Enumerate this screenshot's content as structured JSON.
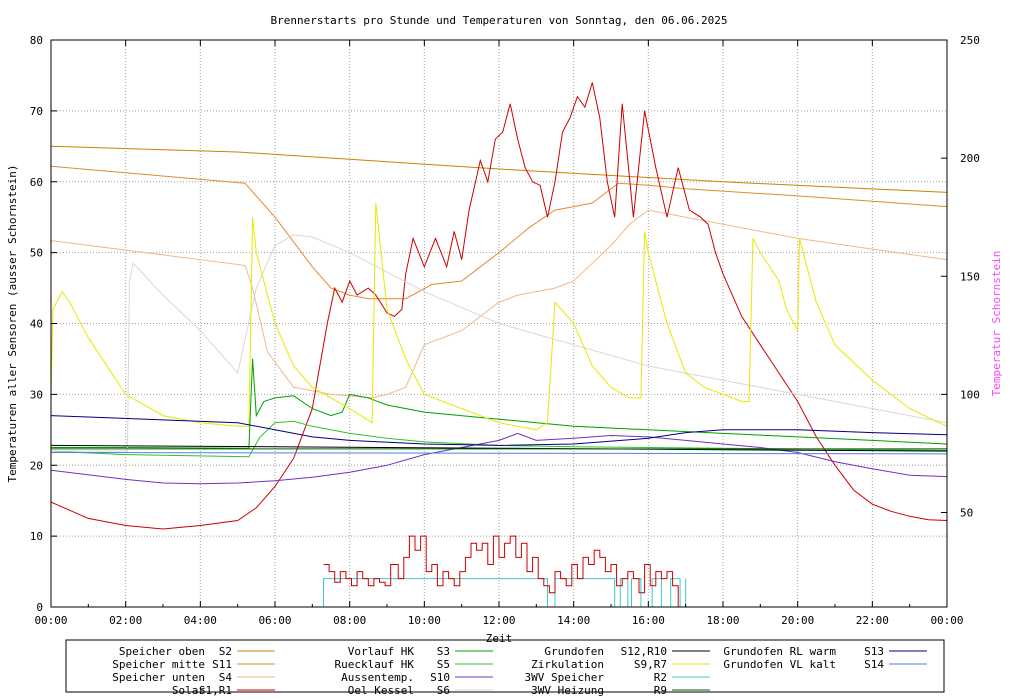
{
  "chart_data": {
    "type": "line",
    "title": "Brennerstarts pro Stunde und Temperaturen von Sonntag, den 06.06.2025",
    "xlabel": "Zeit",
    "ylabel": "Temperaturen aller Sensoren (ausser Schornstein)",
    "y2label": "Temperatur Schornstein",
    "xlim": [
      0,
      24
    ],
    "ylim": [
      0,
      80
    ],
    "y2lim": [
      10,
      250
    ],
    "x_ticks": [
      "00:00",
      "02:00",
      "04:00",
      "06:00",
      "08:00",
      "10:00",
      "12:00",
      "14:00",
      "16:00",
      "18:00",
      "20:00",
      "22:00",
      "00:00"
    ],
    "y_ticks": [
      "0",
      "10",
      "20",
      "30",
      "40",
      "50",
      "60",
      "70",
      "80"
    ],
    "y2_ticks": [
      "50",
      "100",
      "150",
      "200",
      "250"
    ],
    "grid": true,
    "legend_placement": "bottom",
    "colors": {
      "y2label": "#ff44ff",
      "frame": "#000000",
      "grid": "#a0a0a0"
    },
    "series": [
      {
        "name": "Speicher oben",
        "code": "S2",
        "color": "#d08000",
        "x": [
          0,
          5,
          12,
          18,
          24
        ],
        "y": [
          65.0,
          64.2,
          61.8,
          60.0,
          58.5
        ]
      },
      {
        "name": "Speicher mitte",
        "code": "S11",
        "color": "#e08c30",
        "x": [
          0,
          5.2,
          6,
          7,
          7.5,
          8,
          8.5,
          9.5,
          10.2,
          11,
          12,
          12.8,
          13.5,
          14,
          14.5,
          15.2,
          16,
          17,
          20,
          24
        ],
        "y": [
          62.2,
          59.8,
          55,
          48,
          45,
          44,
          43.5,
          43.5,
          45.5,
          46,
          50,
          53.5,
          56,
          56.5,
          57,
          59.8,
          59.5,
          59,
          58,
          56.5
        ]
      },
      {
        "name": "Speicher unten",
        "code": "S4",
        "color": "#f0b888",
        "x": [
          0,
          5.2,
          5.4,
          5.8,
          6.5,
          7,
          7.5,
          8,
          8.6,
          9,
          9.5,
          10,
          11,
          11.5,
          12,
          12.5,
          13,
          13.5,
          14,
          14.5,
          15,
          15.5,
          16,
          18,
          20,
          22,
          24
        ],
        "y": [
          51.7,
          48.2,
          45,
          36,
          31,
          30.5,
          30,
          29.8,
          29.5,
          30,
          31,
          37,
          39,
          41,
          43,
          44,
          44.5,
          45,
          46,
          48.5,
          51,
          54,
          56,
          54,
          52,
          50.5,
          49
        ]
      },
      {
        "name": "Solar",
        "code": "S1,R1",
        "color": "#cc0000",
        "x": [
          0,
          1,
          2,
          3,
          4,
          5,
          5.5,
          6,
          6.5,
          7,
          7.4,
          7.6,
          7.8,
          8,
          8.2,
          8.5,
          8.7,
          9,
          9.2,
          9.4,
          9.5,
          9.7,
          10,
          10.3,
          10.6,
          10.8,
          11,
          11.2,
          11.5,
          11.7,
          11.9,
          12.1,
          12.3,
          12.5,
          12.7,
          12.9,
          13.1,
          13.3,
          13.5,
          13.7,
          13.9,
          14.1,
          14.3,
          14.5,
          14.7,
          14.9,
          15.1,
          15.3,
          15.6,
          15.9,
          16.2,
          16.5,
          16.8,
          17.1,
          17.4,
          17.6,
          17.8,
          18,
          18.5,
          19,
          19.5,
          20,
          20.5,
          21,
          21.5,
          22,
          22.5,
          23,
          23.5,
          24
        ],
        "y": [
          14.8,
          12.5,
          11.5,
          11,
          11.5,
          12.2,
          14,
          17,
          21,
          28,
          40,
          45,
          43,
          46,
          44,
          45,
          44,
          41.5,
          41,
          42,
          47,
          52,
          48,
          52,
          48,
          53,
          49,
          56,
          63,
          60,
          66,
          67,
          71,
          66,
          62,
          60,
          59.5,
          55,
          60,
          67,
          69,
          72,
          70.5,
          74,
          69,
          60,
          55,
          71,
          55,
          70,
          62,
          55,
          62,
          56,
          55,
          54,
          50,
          47,
          41,
          37,
          33,
          29,
          24,
          20,
          16.5,
          14.5,
          13.5,
          12.8,
          12.3,
          12.2
        ]
      },
      {
        "name": "Vorlauf HK",
        "code": "S3",
        "color": "#00a000",
        "x": [
          0,
          2,
          5.3,
          5.4,
          5.5,
          5.7,
          6,
          6.5,
          7,
          7.5,
          7.8,
          8,
          8.5,
          9,
          10,
          12,
          14,
          16,
          18,
          20,
          22,
          24
        ],
        "y": [
          22.5,
          22.5,
          22.4,
          35,
          27,
          29,
          29.5,
          29.8,
          28,
          27,
          27.5,
          30,
          29.5,
          28.5,
          27.5,
          26.5,
          25.5,
          25,
          24.5,
          24,
          23.5,
          23
        ]
      },
      {
        "name": "Ruecklauf HK",
        "code": "S5",
        "color": "#30c030",
        "x": [
          0,
          2,
          5.3,
          5.6,
          6,
          6.5,
          7,
          7.5,
          8,
          9,
          10,
          12,
          14,
          16,
          18,
          20,
          22,
          24
        ],
        "y": [
          22,
          21.5,
          21.2,
          24,
          26,
          26.2,
          25.5,
          25,
          24.5,
          23.8,
          23.3,
          22.8,
          22.6,
          22.5,
          22.4,
          22.3,
          22.2,
          22.1
        ]
      },
      {
        "name": "Aussentemp.",
        "code": "S10",
        "color": "#7030c0",
        "x": [
          0,
          2,
          3,
          4,
          5,
          6,
          7,
          8,
          9,
          10,
          11,
          12,
          12.5,
          13,
          14,
          15,
          16,
          17,
          18,
          19,
          20,
          21,
          22,
          23,
          24
        ],
        "y": [
          19.3,
          18,
          17.5,
          17.4,
          17.5,
          17.8,
          18.3,
          19,
          20,
          21.5,
          22.5,
          23.5,
          24.5,
          23.5,
          23.8,
          24.2,
          24,
          23.5,
          23,
          22.5,
          21.8,
          20.5,
          19.5,
          18.6,
          18.4
        ]
      },
      {
        "name": "Oel Kessel",
        "code": "S6",
        "color": "#d8d8d8",
        "x": [
          0,
          2.05,
          2.1,
          2.2,
          3,
          4,
          5,
          5.5,
          6,
          6.5,
          7,
          8,
          10,
          12,
          14,
          16,
          18,
          20,
          22,
          24
        ],
        "y": [
          22,
          22,
          46,
          48.5,
          44,
          39,
          33,
          45,
          51,
          52.5,
          52.2,
          50,
          44.5,
          40,
          37,
          34,
          32,
          30,
          28,
          26
        ]
      },
      {
        "name": "Grundofen",
        "code": "S12,R10",
        "color": "#000000",
        "x": [
          0,
          6,
          12,
          18,
          24
        ],
        "y": [
          22.8,
          22.6,
          22.4,
          22.2,
          22
        ]
      },
      {
        "name": "Zirkulation",
        "code": "S9,R7",
        "color": "#e8e800",
        "x": [
          0,
          0.05,
          0.3,
          0.5,
          1,
          2,
          3,
          4,
          5,
          5.3,
          5.4,
          5.5,
          6,
          6.5,
          7,
          8,
          8.6,
          8.7,
          8.8,
          9,
          9.5,
          10,
          11,
          12,
          13,
          13.3,
          13.5,
          14,
          14.5,
          15,
          15.5,
          15.8,
          15.9,
          16,
          16.5,
          17,
          17.5,
          18,
          18.5,
          18.7,
          18.8,
          19,
          19.5,
          19.7,
          20,
          20.05,
          20.2,
          20.5,
          21,
          22,
          23,
          24
        ],
        "y": [
          30,
          42,
          44.5,
          43,
          38,
          30,
          27,
          26,
          25.5,
          25.5,
          55,
          50,
          40,
          34,
          31,
          28,
          26,
          57,
          52,
          42,
          35,
          30,
          28,
          26,
          25,
          26,
          43,
          40,
          34,
          31,
          29.5,
          29.5,
          53,
          50,
          40,
          33,
          31,
          30,
          29,
          29,
          52,
          50,
          46,
          42,
          39,
          52,
          49,
          43,
          37,
          32,
          28,
          25.5
        ]
      },
      {
        "name": "3WV Speicher",
        "code": "R2",
        "color": "#40c8c8",
        "x": [
          7.3,
          7.3,
          13.3,
          13.3,
          13.5,
          13.5,
          15.1,
          15.1,
          15.25,
          15.25,
          15.45,
          15.45,
          15.55,
          15.55,
          15.8,
          15.8,
          16.1,
          16.1,
          16.35,
          16.35,
          16.6,
          16.6,
          16.85,
          16.85,
          17.0,
          17.0
        ],
        "y": [
          0,
          4,
          4,
          0,
          0,
          4,
          4,
          0,
          0,
          4,
          4,
          0,
          0,
          4,
          4,
          0,
          0,
          4,
          4,
          0,
          0,
          4,
          4,
          0,
          0,
          4
        ]
      },
      {
        "name": "3WV Heizung",
        "code": "R9",
        "color": "#006000",
        "x": [
          0,
          24
        ],
        "y": [
          22.3,
          22.3
        ]
      },
      {
        "name": "Grundofen RL warm",
        "code": "S13",
        "color": "#000080",
        "x": [
          0,
          5,
          6,
          7,
          8,
          10,
          12,
          14,
          16,
          17,
          18,
          20,
          22,
          24
        ],
        "y": [
          27,
          26,
          25,
          24,
          23.5,
          23,
          22.8,
          23,
          23.8,
          24.6,
          25,
          25,
          24.6,
          24.3
        ]
      },
      {
        "name": "Grundofen VL kalt",
        "code": "S14",
        "color": "#5080e0",
        "x": [
          0,
          24
        ],
        "y": [
          21.8,
          21.6
        ]
      },
      {
        "name": "Brennerstarts",
        "code": "",
        "color": "#cc0000",
        "step": true,
        "x": [
          7.3,
          7.45,
          7.6,
          7.75,
          7.9,
          8.05,
          8.2,
          8.35,
          8.5,
          8.65,
          8.8,
          8.95,
          9.1,
          9.3,
          9.45,
          9.6,
          9.75,
          9.9,
          10.05,
          10.2,
          10.35,
          10.5,
          10.65,
          10.8,
          10.95,
          11.1,
          11.25,
          11.4,
          11.55,
          11.7,
          11.85,
          12.0,
          12.15,
          12.3,
          12.45,
          12.6,
          12.75,
          12.9,
          13.05,
          13.2,
          13.35,
          13.5,
          13.65,
          13.8,
          13.95,
          14.1,
          14.25,
          14.4,
          14.55,
          14.7,
          14.85,
          15.0,
          15.15,
          15.3,
          15.45,
          15.6,
          15.75,
          15.9,
          16.05,
          16.2,
          16.35,
          16.5,
          16.65,
          16.8
        ],
        "y": [
          6,
          5,
          3.5,
          5,
          4,
          3,
          5,
          4,
          3,
          4,
          3.5,
          3,
          6,
          4,
          7,
          10,
          8,
          10,
          5,
          6,
          3,
          5,
          4,
          3,
          5,
          7,
          9,
          8,
          9,
          6,
          10,
          7,
          9,
          10,
          7,
          9,
          5,
          7,
          4,
          3,
          2,
          5,
          4,
          3,
          6,
          4,
          7,
          6,
          8,
          7,
          5,
          6,
          3,
          4,
          5,
          4,
          2,
          6,
          3,
          5,
          4,
          5,
          3,
          0
        ]
      }
    ]
  }
}
